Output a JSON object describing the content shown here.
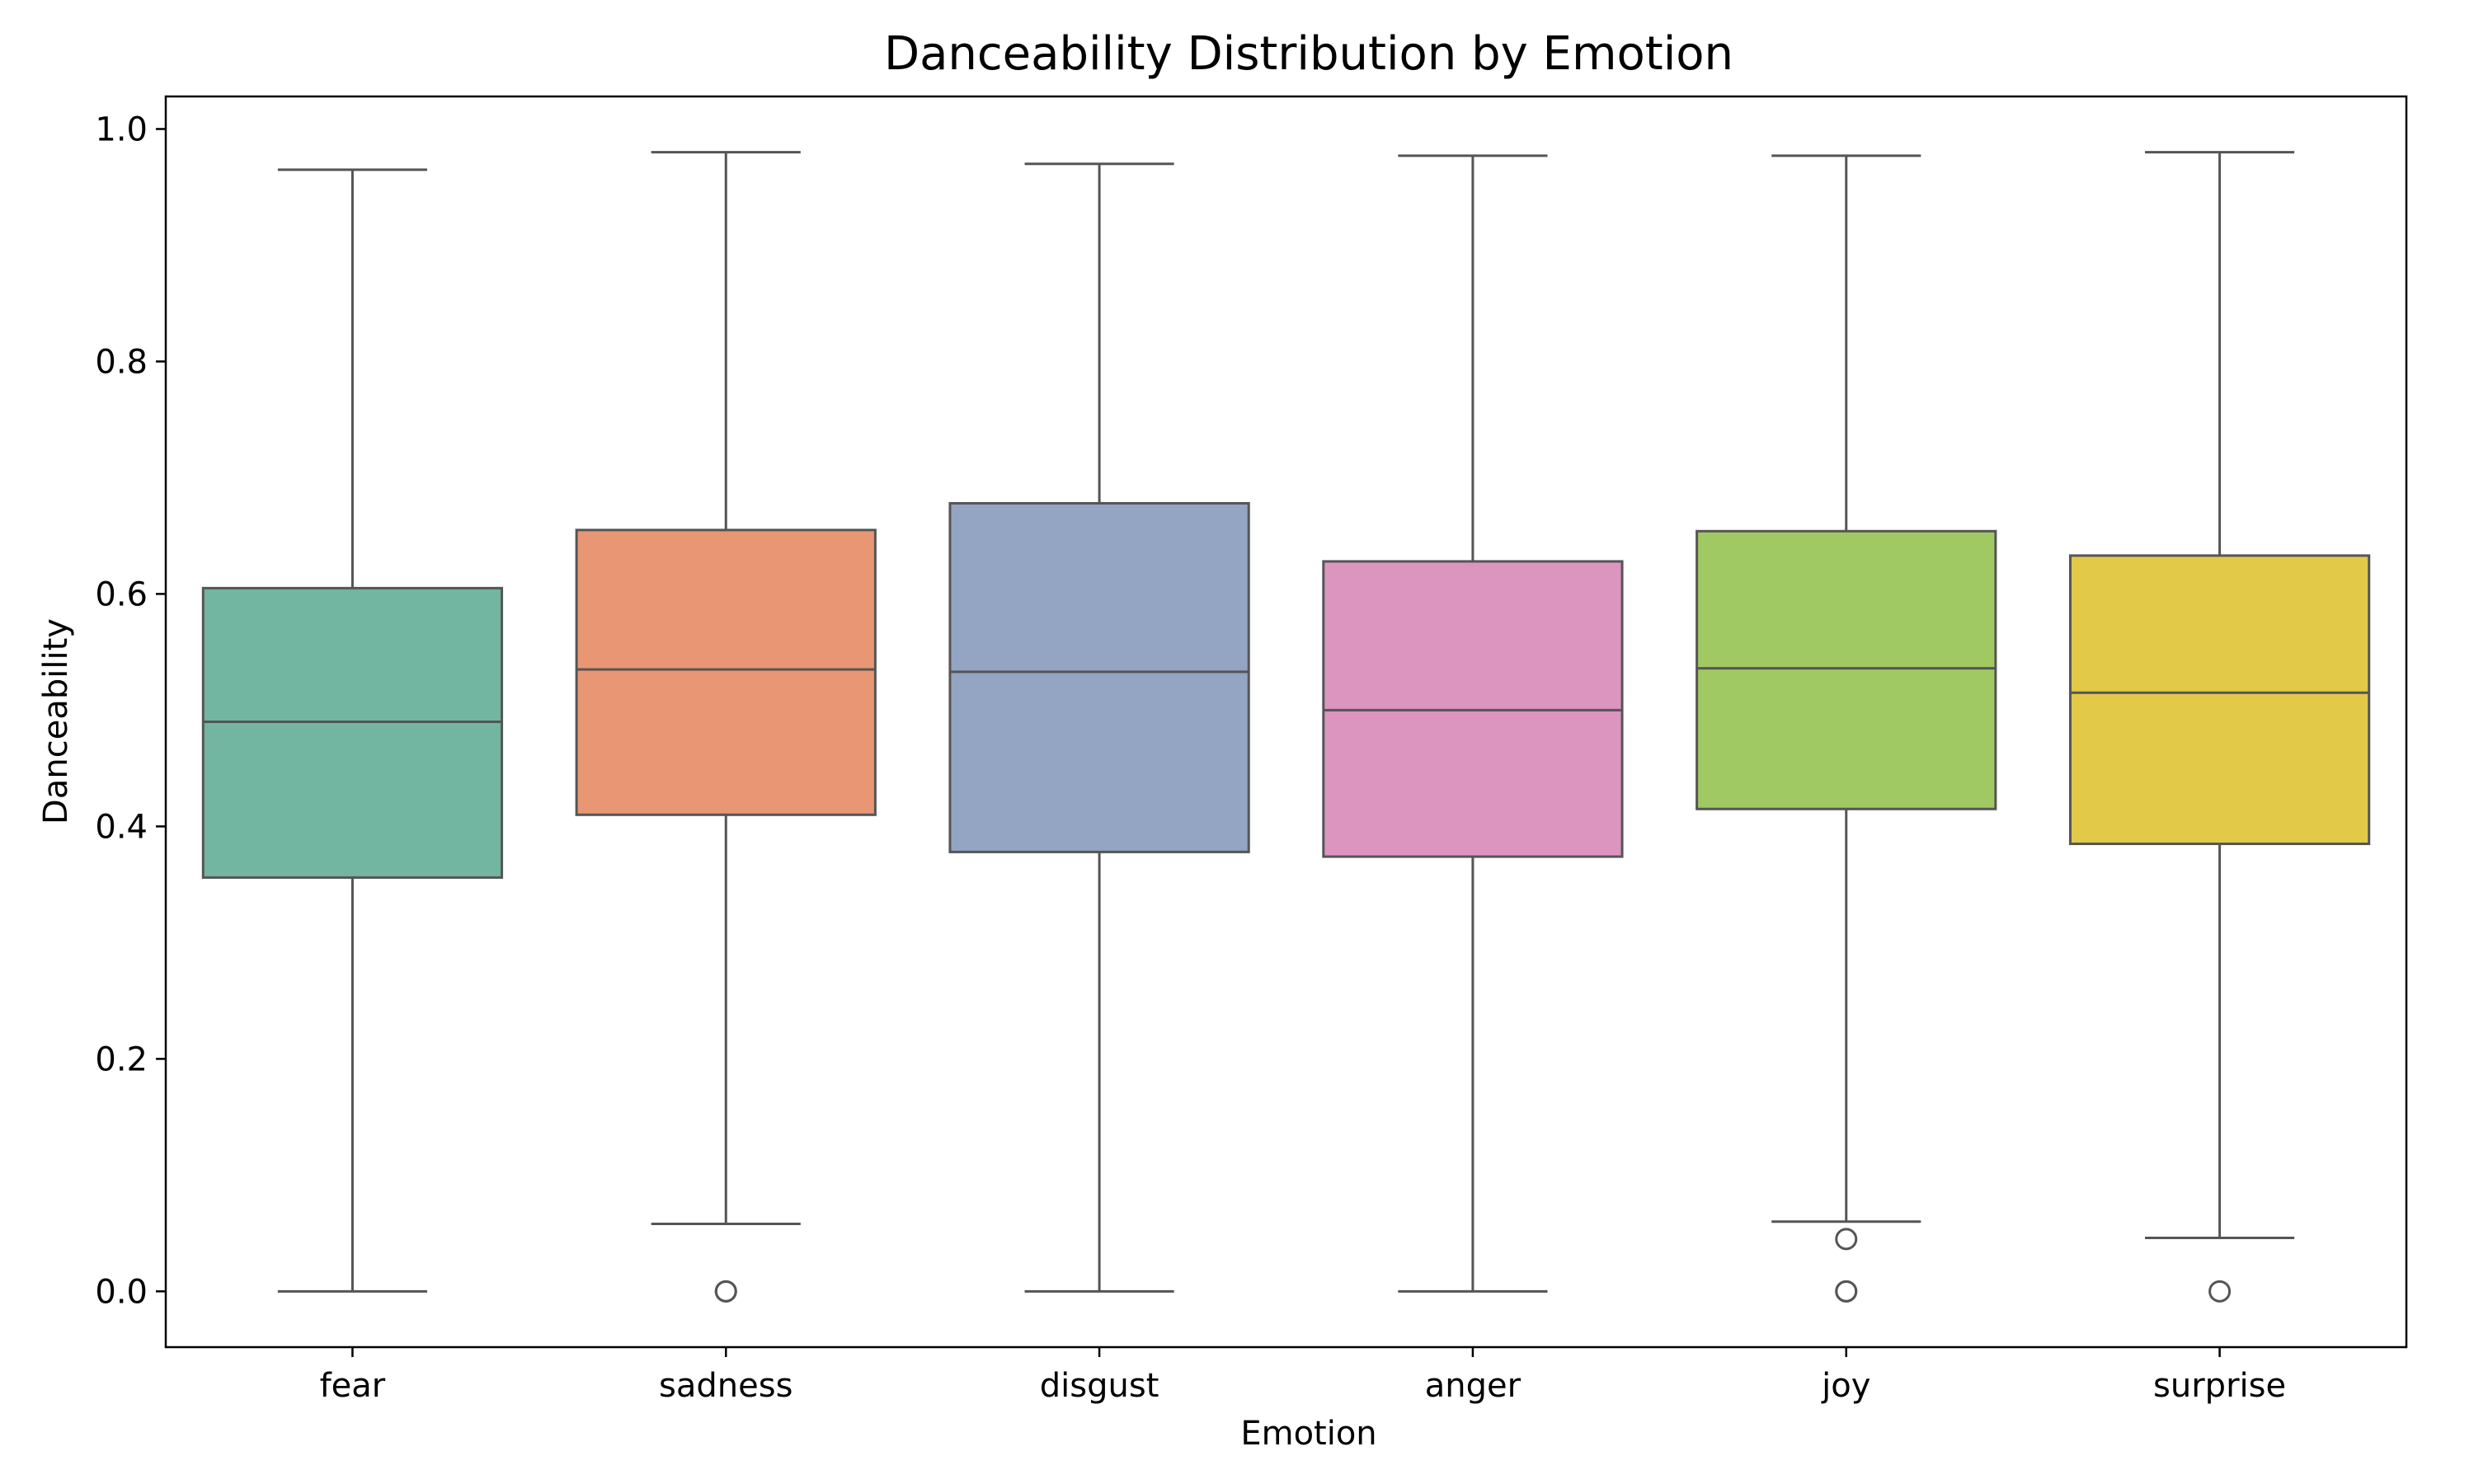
{
  "chart_data": {
    "type": "box",
    "title": "Danceability Distribution by Emotion",
    "xlabel": "Emotion",
    "ylabel": "Danceability",
    "ylim": [
      -0.048,
      1.028
    ],
    "yticks": [
      "0.0",
      "0.2",
      "0.4",
      "0.6",
      "0.8",
      "1.0"
    ],
    "grid": false,
    "categories": [
      "fear",
      "sadness",
      "disgust",
      "anger",
      "joy",
      "surprise"
    ],
    "boxes": [
      {
        "category": "fear",
        "color": "#72b5a0",
        "whisker_low": 0.0,
        "q1": 0.356,
        "median": 0.49,
        "q3": 0.605,
        "whisker_high": 0.965,
        "outliers": []
      },
      {
        "category": "sadness",
        "color": "#e89673",
        "whisker_low": 0.058,
        "q1": 0.41,
        "median": 0.535,
        "q3": 0.655,
        "whisker_high": 0.98,
        "outliers": [
          0.0,
          0.0
        ]
      },
      {
        "category": "disgust",
        "color": "#94a4c3",
        "whisker_low": 0.0,
        "q1": 0.378,
        "median": 0.533,
        "q3": 0.678,
        "whisker_high": 0.97,
        "outliers": []
      },
      {
        "category": "anger",
        "color": "#db95bf",
        "whisker_low": 0.0,
        "q1": 0.374,
        "median": 0.5,
        "q3": 0.628,
        "whisker_high": 0.977,
        "outliers": []
      },
      {
        "category": "joy",
        "color": "#a0c863",
        "whisker_low": 0.06,
        "q1": 0.415,
        "median": 0.536,
        "q3": 0.654,
        "whisker_high": 0.977,
        "outliers": [
          0.045,
          0.0,
          0.0
        ]
      },
      {
        "category": "surprise",
        "color": "#e3c948",
        "whisker_low": 0.046,
        "q1": 0.385,
        "median": 0.515,
        "q3": 0.633,
        "whisker_high": 0.98,
        "outliers": [
          0.0
        ]
      }
    ],
    "line_color": "#555555"
  }
}
